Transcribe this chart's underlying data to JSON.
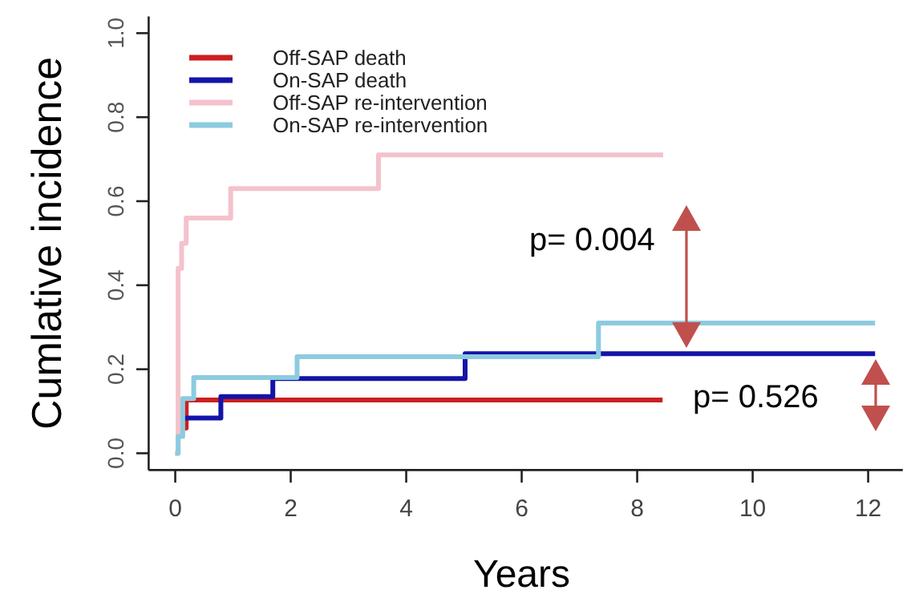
{
  "chart_data": {
    "type": "step",
    "xlabel": "Years",
    "ylabel": "Cumlative incidence",
    "xlim": [
      -0.46,
      12.6
    ],
    "ylim": [
      -0.04,
      1.04
    ],
    "xticks": [
      0,
      2,
      4,
      6,
      8,
      10,
      12
    ],
    "yticks": [
      {
        "value": 0,
        "label": "0.0"
      },
      {
        "value": 0.2,
        "label": "0.2"
      },
      {
        "value": 0.4,
        "label": "0.4"
      },
      {
        "value": 0.6,
        "label": "0.6"
      },
      {
        "value": 0.8,
        "label": "0.8"
      },
      {
        "value": 1,
        "label": "1.0"
      }
    ],
    "grid": false,
    "legend": "top left",
    "line_style": "solid",
    "marker": "none",
    "series": [
      {
        "name": "Off-SAP death",
        "color": "#cc1f1f",
        "x": [
          0.15,
          0.19,
          8.44
        ],
        "values": [
          0.06,
          0.127,
          0.127
        ]
      },
      {
        "name": "On-SAP death",
        "color": "#1414a8",
        "x": [
          0.11,
          0.79,
          1.69,
          5.02,
          12.12
        ],
        "values": [
          0.084,
          0.135,
          0.178,
          0.237,
          0.237
        ]
      },
      {
        "name": "Off-SAP re-intervention",
        "color": "#f4c2cc",
        "x": [
          0,
          0.05,
          0.11,
          0.19,
          0.96,
          3.52,
          8.45
        ],
        "values": [
          0,
          0.44,
          0.5,
          0.56,
          0.63,
          0.71,
          0.71
        ]
      },
      {
        "name": "On-SAP re-intervention",
        "color": "#8ccbe0",
        "x": [
          0,
          0.05,
          0.13,
          0.32,
          2.11,
          7.33,
          12.12
        ],
        "values": [
          0,
          0.04,
          0.13,
          0.18,
          0.23,
          0.31,
          0.31
        ]
      }
    ],
    "annotations": [
      "p= 0.004",
      "p= 0.526"
    ]
  }
}
